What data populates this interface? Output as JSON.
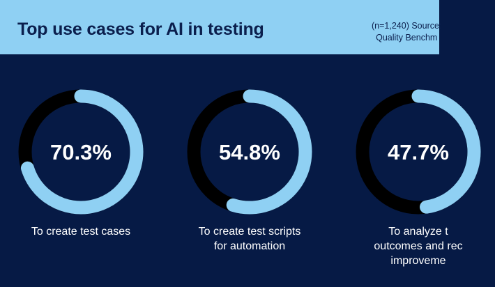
{
  "header": {
    "title": "Top use cases for AI in testing",
    "source_line1": "(n=1,240) Source: ",
    "source_line2": "Quality Benchm"
  },
  "colors": {
    "header_bg": "#8fd0f3",
    "background": "#061a45",
    "ring_track": "#000000",
    "ring_fill": "#8fd0f3",
    "text_light": "#ffffff",
    "text_dark": "#0b1f4d"
  },
  "chart_data": {
    "type": "pie",
    "title": "Top use cases for AI in testing",
    "unit": "%",
    "categories": [
      "To create test cases",
      "To create test scripts for automation",
      "To analyze t outcomes and rec improveme"
    ],
    "values": [
      70.3,
      54.8,
      47.7
    ],
    "value_labels": [
      "70.3%",
      "54.8%",
      "47.7%"
    ],
    "label_lines": [
      [
        "To create test cases"
      ],
      [
        "To create test scripts",
        "for automation"
      ],
      [
        "To analyze t",
        "outcomes and rec",
        "improveme"
      ]
    ],
    "max": 100
  }
}
